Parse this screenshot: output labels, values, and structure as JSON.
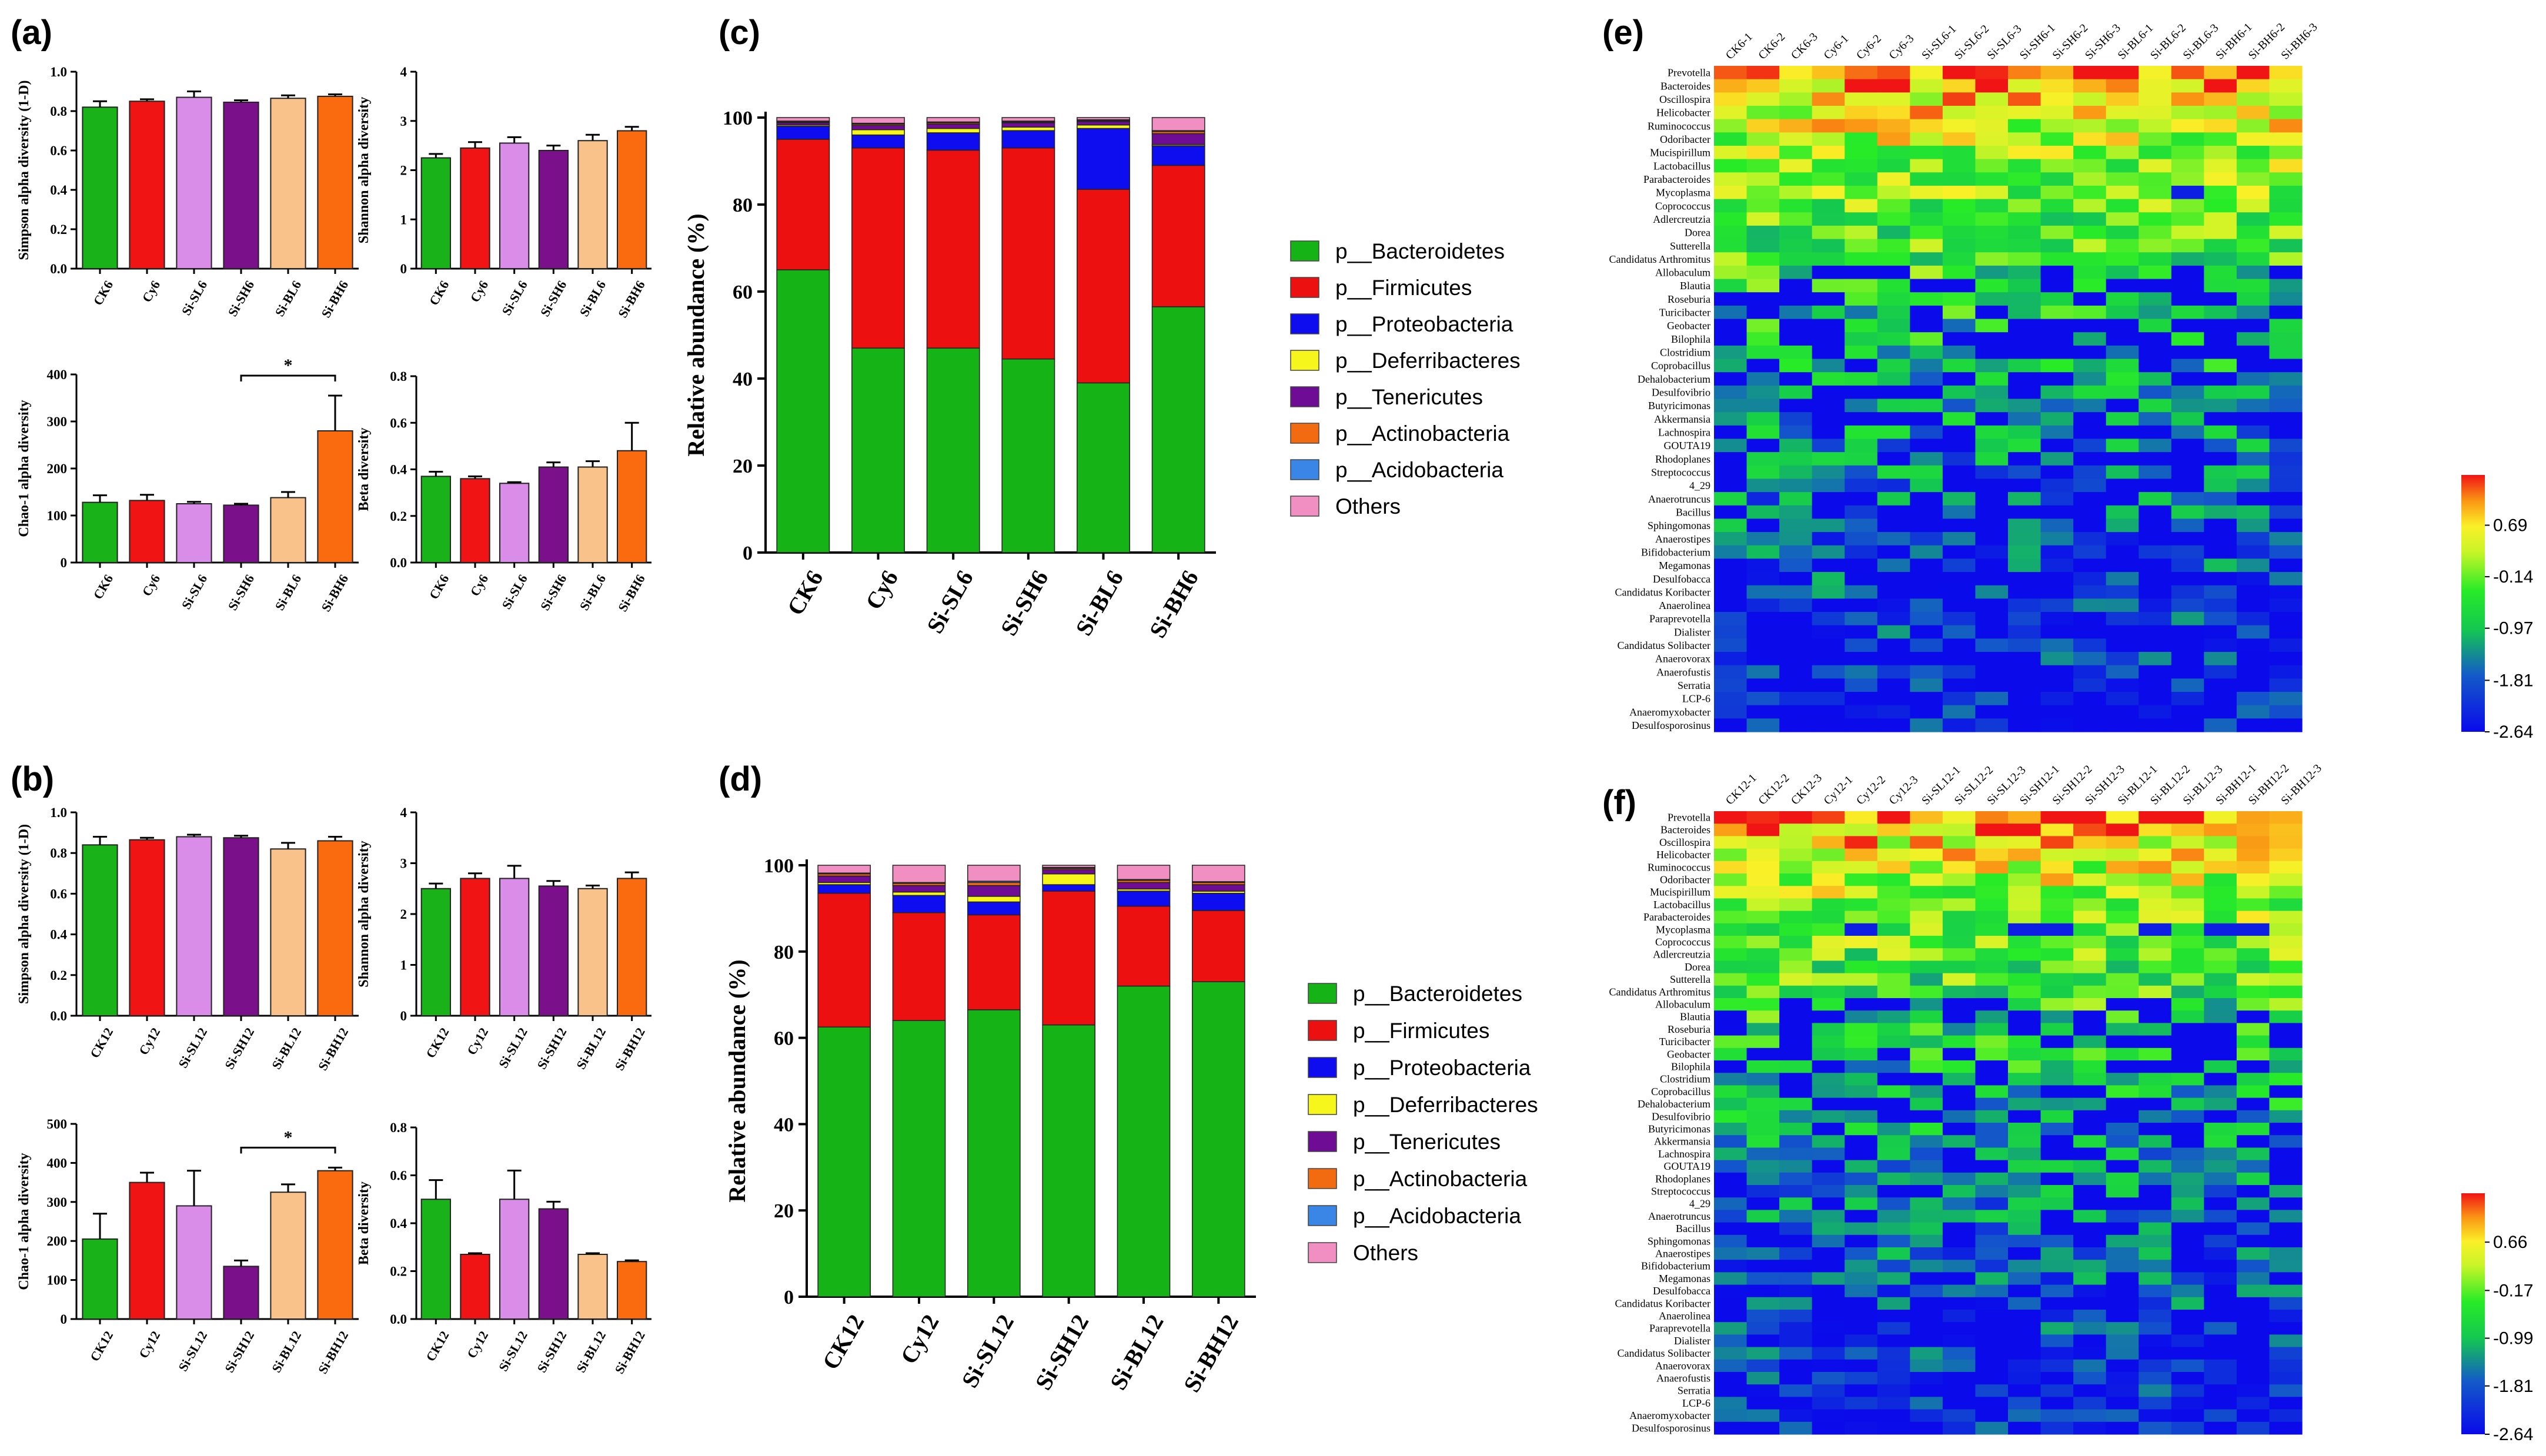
{
  "panel_labels": [
    "(a)",
    "(b)",
    "(c)",
    "(d)",
    "(e)",
    "(f)"
  ],
  "colors": {
    "CK": "#19b219",
    "Cy": "#f01414",
    "Si-SL": "#d98ce8",
    "Si-SH": "#7b108b",
    "Si-BL": "#f9c28b",
    "Si-BH": "#f96b0e"
  },
  "phylum_colors": [
    "#16b316",
    "#ec1010",
    "#0d0df0",
    "#f6f61c",
    "#6e0c96",
    "#f26b10",
    "#3a86e6",
    "#f28fc2"
  ],
  "chart_data": [
    {
      "id": "a1",
      "type": "bar",
      "ylabel": "Simpson alpha diversity (1-D)",
      "categories": [
        "CK6",
        "Cy6",
        "Si-SL6",
        "Si-SH6",
        "Si-BL6",
        "Si-BH6"
      ],
      "values": [
        0.82,
        0.85,
        0.87,
        0.845,
        0.865,
        0.875
      ],
      "errors": [
        0.03,
        0.01,
        0.03,
        0.01,
        0.015,
        0.01
      ],
      "ylim": [
        0,
        1.0
      ],
      "ticks": [
        "0.0",
        "0.2",
        "0.4",
        "0.6",
        "0.8",
        "1.0"
      ]
    },
    {
      "id": "a2",
      "type": "bar",
      "ylabel": "Shannon alpha diversity",
      "categories": [
        "CK6",
        "Cy6",
        "Si-SL6",
        "Si-SH6",
        "Si-BL6",
        "Si-BH6"
      ],
      "values": [
        2.25,
        2.45,
        2.55,
        2.4,
        2.6,
        2.8
      ],
      "errors": [
        0.08,
        0.12,
        0.12,
        0.1,
        0.12,
        0.08
      ],
      "ylim": [
        0,
        4
      ],
      "ticks": [
        "0",
        "1",
        "2",
        "3",
        "4"
      ]
    },
    {
      "id": "a3",
      "type": "bar",
      "ylabel": "Chao-1 alpha diversity",
      "categories": [
        "CK6",
        "Cy6",
        "Si-SL6",
        "Si-SH6",
        "Si-BL6",
        "Si-BH6"
      ],
      "values": [
        128,
        132,
        125,
        122,
        138,
        280
      ],
      "errors": [
        15,
        12,
        4,
        3,
        12,
        75
      ],
      "ylim": [
        0,
        400
      ],
      "ticks": [
        "0",
        "100",
        "200",
        "300",
        "400"
      ],
      "sig": {
        "from": 3,
        "to": 5,
        "label": "*"
      }
    },
    {
      "id": "a4",
      "type": "bar",
      "ylabel": "Beta diversity",
      "categories": [
        "CK6",
        "Cy6",
        "Si-SL6",
        "Si-SH6",
        "Si-BL6",
        "Si-BH6"
      ],
      "values": [
        0.37,
        0.36,
        0.34,
        0.41,
        0.41,
        0.48
      ],
      "errors": [
        0.02,
        0.01,
        0.005,
        0.02,
        0.025,
        0.12
      ],
      "ylim": [
        0,
        0.8
      ],
      "ticks": [
        "0.0",
        "0.2",
        "0.4",
        "0.6",
        "0.8"
      ]
    },
    {
      "id": "b1",
      "type": "bar",
      "ylabel": "Simpson alpha diversity (1-D)",
      "categories": [
        "CK12",
        "Cy12",
        "Si-SL12",
        "Si-SH12",
        "Si-BL12",
        "Si-BH12"
      ],
      "values": [
        0.84,
        0.865,
        0.88,
        0.875,
        0.82,
        0.86
      ],
      "errors": [
        0.04,
        0.01,
        0.01,
        0.01,
        0.03,
        0.02
      ],
      "ylim": [
        0,
        1.0
      ],
      "ticks": [
        "0.0",
        "0.2",
        "0.4",
        "0.6",
        "0.8",
        "1.0"
      ]
    },
    {
      "id": "b2",
      "type": "bar",
      "ylabel": "Shannon alpha diversity",
      "categories": [
        "CK12",
        "Cy12",
        "Si-SL12",
        "Si-SH12",
        "Si-BL12",
        "Si-BH12"
      ],
      "values": [
        2.5,
        2.7,
        2.7,
        2.55,
        2.5,
        2.7
      ],
      "errors": [
        0.1,
        0.1,
        0.25,
        0.1,
        0.06,
        0.12
      ],
      "ylim": [
        0,
        4
      ],
      "ticks": [
        "0",
        "1",
        "2",
        "3",
        "4"
      ]
    },
    {
      "id": "b3",
      "type": "bar",
      "ylabel": "Chao-1 alpha diversity",
      "categories": [
        "CK12",
        "Cy12",
        "Si-SL12",
        "Si-SH12",
        "Si-BL12",
        "Si-BH12"
      ],
      "values": [
        205,
        350,
        290,
        135,
        325,
        380
      ],
      "errors": [
        65,
        25,
        90,
        15,
        20,
        8
      ],
      "ylim": [
        0,
        500
      ],
      "ticks": [
        "0",
        "100",
        "200",
        "300",
        "400",
        "500"
      ],
      "sig": {
        "from": 3,
        "to": 5,
        "label": "*"
      }
    },
    {
      "id": "b4",
      "type": "bar",
      "ylabel": "Beta diversity",
      "categories": [
        "CK12",
        "Cy12",
        "Si-SL12",
        "Si-SH12",
        "Si-BL12",
        "Si-BH12"
      ],
      "values": [
        0.5,
        0.27,
        0.5,
        0.46,
        0.27,
        0.24
      ],
      "errors": [
        0.08,
        0.005,
        0.12,
        0.03,
        0.005,
        0.005
      ],
      "ylim": [
        0,
        0.8
      ],
      "ticks": [
        "0.0",
        "0.2",
        "0.4",
        "0.6",
        "0.8"
      ]
    },
    {
      "id": "c",
      "type": "stacked-bar",
      "ylabel": "Relative abundance (%)",
      "categories": [
        "CK6",
        "Cy6",
        "Si-SL6",
        "Si-SH6",
        "Si-BL6",
        "Si-BH6"
      ],
      "ylim": [
        0,
        100
      ],
      "ticks": [
        "0",
        "20",
        "40",
        "60",
        "80",
        "100"
      ],
      "series": [
        {
          "name": "p__Bacteroidetes",
          "values": [
            65,
            47,
            47,
            44.5,
            39,
            56.5
          ]
        },
        {
          "name": "p__Firmicutes",
          "values": [
            30,
            46,
            45.5,
            48.5,
            44.5,
            32.5
          ]
        },
        {
          "name": "p__Proteobacteria",
          "values": [
            3,
            3,
            4,
            4,
            14,
            4.5
          ]
        },
        {
          "name": "p__Deferribacteres",
          "values": [
            0.3,
            1.2,
            1,
            0.8,
            0.8,
            0.3
          ]
        },
        {
          "name": "p__Tenericutes",
          "values": [
            0.5,
            1,
            1,
            1,
            0.8,
            2.5
          ]
        },
        {
          "name": "p__Actinobacteria",
          "values": [
            0.2,
            0.3,
            0.3,
            0.2,
            0.2,
            0.5
          ]
        },
        {
          "name": "p__Acidobacteria",
          "values": [
            0.2,
            0.2,
            0.2,
            0.2,
            0.2,
            0.2
          ]
        },
        {
          "name": "Others",
          "values": [
            0.8,
            1.3,
            1,
            0.8,
            0.5,
            3
          ]
        }
      ]
    },
    {
      "id": "d",
      "type": "stacked-bar",
      "ylabel": "Relative abundance (%)",
      "categories": [
        "CK12",
        "Cy12",
        "Si-SL12",
        "Si-SH12",
        "Si-BL12",
        "Si-BH12"
      ],
      "ylim": [
        0,
        100
      ],
      "ticks": [
        "0",
        "20",
        "40",
        "60",
        "80",
        "100"
      ],
      "series": [
        {
          "name": "p__Bacteroidetes",
          "values": [
            62.5,
            64,
            66.5,
            63,
            72,
            73
          ]
        },
        {
          "name": "p__Firmicutes",
          "values": [
            31,
            25,
            22,
            31,
            18.5,
            16.5
          ]
        },
        {
          "name": "p__Proteobacteria",
          "values": [
            2,
            4,
            3,
            1.5,
            3.5,
            4
          ]
        },
        {
          "name": "p__Deferribacteres",
          "values": [
            0.5,
            0.8,
            1.3,
            2.5,
            0.5,
            0.5
          ]
        },
        {
          "name": "p__Tenericutes",
          "values": [
            1.5,
            1.5,
            2.5,
            1,
            1.5,
            1.5
          ]
        },
        {
          "name": "p__Actinobacteria",
          "values": [
            0.5,
            0.5,
            0.7,
            0.3,
            0.5,
            0.5
          ]
        },
        {
          "name": "p__Acidobacteria",
          "values": [
            0.2,
            0.2,
            0.3,
            0.2,
            0.2,
            0.2
          ]
        },
        {
          "name": "Others",
          "values": [
            1.8,
            4,
            3.7,
            0.5,
            3.3,
            3.8
          ]
        }
      ]
    },
    {
      "id": "e",
      "type": "heatmap",
      "columns": [
        "CK6-1",
        "CK6-2",
        "CK6-3",
        "Cy6-1",
        "Cy6-2",
        "Cy6-3",
        "Si-SL6-1",
        "Si-SL6-2",
        "Si-SL6-3",
        "Si-SH6-1",
        "Si-SH6-2",
        "Si-SH6-3",
        "Si-BL6-1",
        "Si-BL6-2",
        "Si-BL6-3",
        "Si-BH6-1",
        "Si-BH6-2",
        "Si-BH6-3"
      ],
      "rows": [
        "Prevotella",
        "Bacteroides",
        "Oscillospira",
        "Helicobacter",
        "Ruminococcus",
        "Odoribacter",
        "Mucispirillum",
        "Lactobacillus",
        "Parabacteroides",
        "Mycoplasma",
        "Coprococcus",
        "Adlercreutzia",
        "Dorea",
        "Sutterella",
        "Candidatus Arthromitus",
        "Allobaculum",
        "Blautia",
        "Roseburia",
        "Turicibacter",
        "Geobacter",
        "Bilophila",
        "Clostridium",
        "Coprobacillus",
        "Dehalobacterium",
        "Desulfovibrio",
        "Butyricimonas",
        "Akkermansia",
        "Lachnospira",
        "GOUTA19",
        "Rhodoplanes",
        "Streptococcus",
        "4_29",
        "Anaerotruncus",
        "Bacillus",
        "Sphingomonas",
        "Anaerostipes",
        "Bifidobacterium",
        "Megamonas",
        "Desulfobacca",
        "Candidatus Koribacter",
        "Anaerolinea",
        "Paraprevotella",
        "Dialister",
        "Candidatus Solibacter",
        "Anaerovorax",
        "Anaerofustis",
        "Serratia",
        "LCP-6",
        "Anaeromyxobacter",
        "Desulfosporosinus"
      ],
      "scale_labels": [
        "0.69",
        "-0.14",
        "-0.97",
        "-1.81",
        "-2.64"
      ],
      "vmin": -2.64,
      "vmax": 1.5
    },
    {
      "id": "f",
      "type": "heatmap",
      "columns": [
        "CK12-1",
        "CK12-2",
        "CK12-3",
        "Cy12-1",
        "Cy12-2",
        "Cy12-3",
        "Si-SL12-1",
        "Si-SL12-2",
        "Si-SL12-3",
        "Si-SH12-1",
        "Si-SH12-2",
        "Si-SH12-3",
        "Si-BL12-1",
        "Si-BL12-2",
        "Si-BL12-3",
        "Si-BH12-1",
        "Si-BH12-2",
        "Si-BH12-3"
      ],
      "rows": [
        "Prevotella",
        "Bacteroides",
        "Oscillospira",
        "Helicobacter",
        "Ruminococcus",
        "Odoribacter",
        "Mucispirillum",
        "Lactobacillus",
        "Parabacteroides",
        "Mycoplasma",
        "Coprococcus",
        "Adlercreutzia",
        "Dorea",
        "Sutterella",
        "Candidatus Arthromitus",
        "Allobaculum",
        "Blautia",
        "Roseburia",
        "Turicibacter",
        "Geobacter",
        "Bilophila",
        "Clostridium",
        "Coprobacillus",
        "Dehalobacterium",
        "Desulfovibrio",
        "Butyricimonas",
        "Akkermansia",
        "Lachnospira",
        "GOUTA19",
        "Rhodoplanes",
        "Streptococcus",
        "4_29",
        "Anaerotruncus",
        "Bacillus",
        "Sphingomonas",
        "Anaerostipes",
        "Bifidobacterium",
        "Megamonas",
        "Desulfobacca",
        "Candidatus Koribacter",
        "Anaerolinea",
        "Paraprevotella",
        "Dialister",
        "Candidatus Solibacter",
        "Anaerovorax",
        "Anaerofustis",
        "Serratia",
        "LCP-6",
        "Anaeromyxobacter",
        "Desulfosporosinus"
      ],
      "scale_labels": [
        "0.66",
        "-0.17",
        "-0.99",
        "-1.81",
        "-2.64"
      ],
      "vmin": -2.64,
      "vmax": 1.5
    }
  ]
}
